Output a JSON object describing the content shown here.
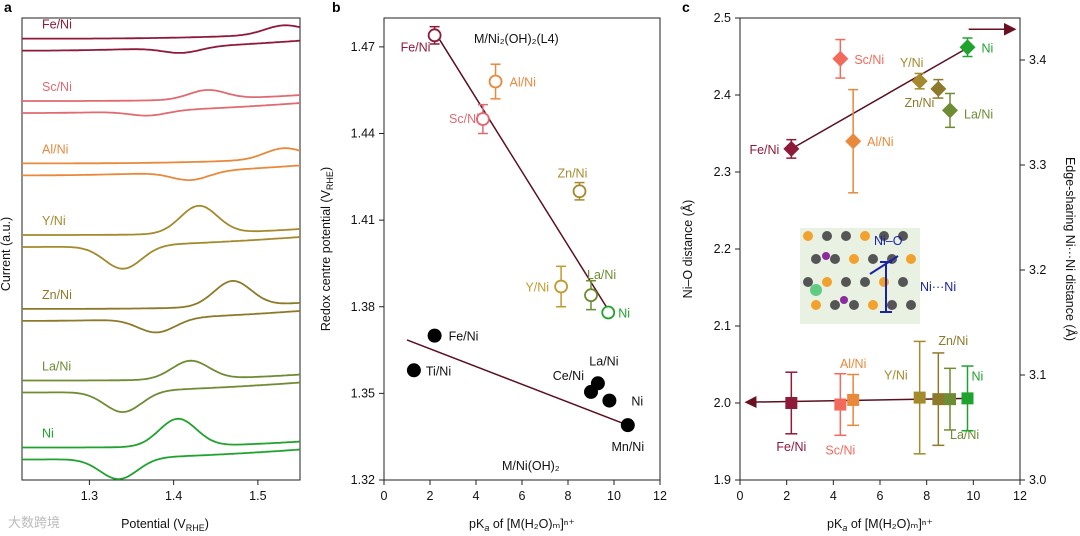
{
  "watermark": "大数跨境",
  "chart_data": [
    {
      "type": "line",
      "panel": "a",
      "ylabel": "Current (a.u.)",
      "xlabel": "Potential (V",
      "xlabel_sub": "RHE",
      "xlabel_end": ")",
      "xlim": [
        1.22,
        1.55
      ],
      "xticks": [
        1.3,
        1.4,
        1.5
      ],
      "xtick_labels": [
        "1.3",
        "1.4",
        "1.5"
      ],
      "series": [
        {
          "name": "Fe/Ni",
          "color": "#8e1a3a",
          "base": 0.075,
          "ox_peak": 1.53,
          "ox_h": 0.018,
          "red_peak": 1.41,
          "red_h": 0.012
        },
        {
          "name": "Sc/Ni",
          "color": "#e06a72",
          "base": 0.21,
          "ox_peak": 1.44,
          "ox_h": 0.02,
          "red_peak": 1.37,
          "red_h": 0.01
        },
        {
          "name": "Al/Ni",
          "color": "#e8893b",
          "base": 0.345,
          "ox_peak": 1.53,
          "ox_h": 0.022,
          "red_peak": 1.42,
          "red_h": 0.018
        },
        {
          "name": "Y/Ni",
          "color": "#a38a2c",
          "base": 0.5,
          "ox_peak": 1.43,
          "ox_h": 0.06,
          "red_peak": 1.34,
          "red_h": 0.05
        },
        {
          "name": "Zn/Ni",
          "color": "#8c7a2a",
          "base": 0.66,
          "ox_peak": 1.47,
          "ox_h": 0.055,
          "red_peak": 1.38,
          "red_h": 0.03
        },
        {
          "name": "La/Ni",
          "color": "#6e8c33",
          "base": 0.815,
          "ox_peak": 1.42,
          "ox_h": 0.04,
          "red_peak": 1.34,
          "red_h": 0.045
        },
        {
          "name": "Ni",
          "color": "#1fa32e",
          "base": 0.96,
          "ox_peak": 1.405,
          "ox_h": 0.06,
          "red_peak": 1.335,
          "red_h": 0.045
        }
      ]
    },
    {
      "type": "scatter",
      "panel": "b",
      "xlabel": "pK",
      "xlabel_sub": "a",
      "xlabel_end": " of [M(H₂O)ₘ]ⁿ⁺",
      "ylabel": "Redox centre potential (V",
      "ylabel_sub": "RHE",
      "ylabel_end": ")",
      "xlim": [
        0,
        12
      ],
      "ylim": [
        1.32,
        1.48
      ],
      "xticks": [
        0,
        2,
        4,
        6,
        8,
        10,
        12
      ],
      "xtick_labels": [
        "0",
        "2",
        "4",
        "6",
        "8",
        "10",
        "12"
      ],
      "yticks": [
        1.32,
        1.35,
        1.38,
        1.41,
        1.44,
        1.47
      ],
      "ytick_labels": [
        "1.32",
        "1.35",
        "1.38",
        "1.41",
        "1.44",
        "1.47"
      ],
      "annotations": [
        "M/Ni₂(OH)₂(L4)",
        "M/Ni(OH)₂"
      ],
      "open_points": [
        {
          "label": "Fe/Ni",
          "x": 2.2,
          "y": 1.474,
          "err": 0.003,
          "color": "#8e1a3a"
        },
        {
          "label": "Al/Ni",
          "x": 4.85,
          "y": 1.458,
          "err": 0.006,
          "color": "#e8893b"
        },
        {
          "label": "Sc/Ni",
          "x": 4.3,
          "y": 1.445,
          "err": 0.005,
          "color": "#e06a72"
        },
        {
          "label": "Zn/Ni",
          "x": 8.5,
          "y": 1.42,
          "err": 0.003,
          "color": "#a38a2c"
        },
        {
          "label": "Y/Ni",
          "x": 7.7,
          "y": 1.387,
          "err": 0.007,
          "color": "#c29a2f"
        },
        {
          "label": "La/Ni",
          "x": 9.0,
          "y": 1.384,
          "err": 0.005,
          "color": "#6e8c33"
        },
        {
          "label": "Ni",
          "x": 9.75,
          "y": 1.378,
          "err": 0.0,
          "color": "#1fa32e"
        }
      ],
      "filled_points": [
        {
          "label": "Fe/Ni",
          "x": 2.2,
          "y": 1.37
        },
        {
          "label": "Ti/Ni",
          "x": 1.3,
          "y": 1.358
        },
        {
          "label": "La/Ni",
          "x": 9.3,
          "y": 1.3535
        },
        {
          "label": "Ce/Ni",
          "x": 9.0,
          "y": 1.3505
        },
        {
          "label": "Ni",
          "x": 9.8,
          "y": 1.3475
        },
        {
          "label": "Mn/Ni",
          "x": 10.6,
          "y": 1.339
        }
      ],
      "fit_lines": [
        {
          "x": [
            2.3,
            9.9
          ],
          "y": [
            1.474,
            1.377
          ]
        },
        {
          "x": [
            1.0,
            10.6
          ],
          "y": [
            1.3685,
            1.339
          ]
        }
      ]
    },
    {
      "type": "scatter",
      "panel": "c",
      "xlabel": "pK",
      "xlabel_sub": "a",
      "xlabel_end": " of [M(H₂O)ₘ]ⁿ⁺",
      "ylabel": "Ni–O distance (Å)",
      "ylabel_right": "Edge-sharing Ni···Ni distance (Å)",
      "xlim": [
        0,
        12
      ],
      "ylim": [
        1.9,
        2.5
      ],
      "ylim_right": [
        3.0,
        3.44
      ],
      "xticks": [
        0,
        2,
        4,
        6,
        8,
        10,
        12
      ],
      "xtick_labels": [
        "0",
        "2",
        "4",
        "6",
        "8",
        "10",
        "12"
      ],
      "yticks": [
        1.9,
        2.0,
        2.1,
        2.2,
        2.3,
        2.4,
        2.5
      ],
      "ytick_labels": [
        "1.9",
        "2.0",
        "2.1",
        "2.2",
        "2.3",
        "2.4",
        "2.5"
      ],
      "yticks_right": [
        3.0,
        3.1,
        3.2,
        3.3,
        3.4
      ],
      "ytick_labels_right": [
        "3.0",
        "3.1",
        "3.2",
        "3.3",
        "3.4"
      ],
      "inset_labels": [
        "Ni–O",
        "Ni···Ni"
      ],
      "diamonds": [
        {
          "label": "Fe/Ni",
          "x": 2.2,
          "y": 2.33,
          "err": 0.012,
          "color": "#8e1a3a"
        },
        {
          "label": "Sc/Ni",
          "x": 4.3,
          "y": 2.447,
          "err": 0.025,
          "color": "#f26a5b"
        },
        {
          "label": "Al/Ni",
          "x": 4.85,
          "y": 2.34,
          "err": 0.067,
          "color": "#e8893b"
        },
        {
          "label": "Y/Ni",
          "x": 7.7,
          "y": 2.418,
          "err": 0.01,
          "color": "#a38a2c"
        },
        {
          "label": "Zn/Ni",
          "x": 8.5,
          "y": 2.408,
          "err": 0.012,
          "color": "#8c7a2a"
        },
        {
          "label": "La/Ni",
          "x": 9.0,
          "y": 2.38,
          "err": 0.022,
          "color": "#6e8c33"
        },
        {
          "label": "Ni",
          "x": 9.75,
          "y": 2.462,
          "err": 0.012,
          "color": "#1fa32e"
        }
      ],
      "squares": [
        {
          "label": "Fe/Ni",
          "x": 2.2,
          "y": 2.0,
          "err": 0.04,
          "color": "#8e1a3a"
        },
        {
          "label": "Sc/Ni",
          "x": 4.3,
          "y": 1.998,
          "err": 0.04,
          "color": "#f26a5b"
        },
        {
          "label": "Al/Ni",
          "x": 4.85,
          "y": 2.004,
          "err": 0.033,
          "color": "#e8893b"
        },
        {
          "label": "Y/Ni",
          "x": 7.7,
          "y": 2.007,
          "err": 0.073,
          "color": "#a38a2c"
        },
        {
          "label": "Zn/Ni",
          "x": 8.5,
          "y": 2.005,
          "err": 0.06,
          "color": "#8c7a2a"
        },
        {
          "label": "La/Ni",
          "x": 9.0,
          "y": 2.005,
          "err": 0.04,
          "color": "#6e8c33"
        },
        {
          "label": "Ni",
          "x": 9.75,
          "y": 2.006,
          "err": 0.042,
          "color": "#1fa32e"
        }
      ],
      "fit_lines": [
        {
          "x": [
            2.2,
            9.8
          ],
          "y": [
            2.33,
            2.462
          ]
        },
        {
          "x": [
            2.2,
            9.8
          ],
          "y": [
            2.001,
            2.006
          ]
        }
      ]
    }
  ]
}
